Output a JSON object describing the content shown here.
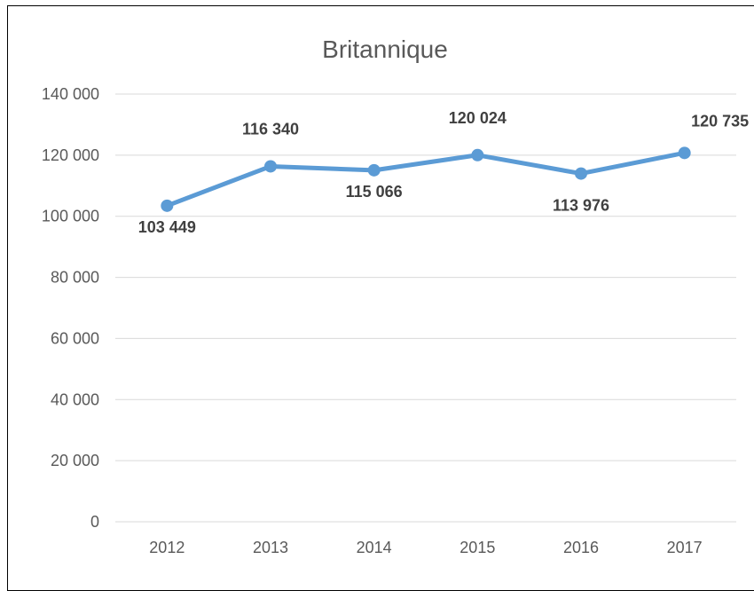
{
  "chart_data": {
    "type": "line",
    "title": "Britannique",
    "categories": [
      "2012",
      "2013",
      "2014",
      "2015",
      "2016",
      "2017"
    ],
    "series": [
      {
        "values": [
          103449,
          116340,
          115066,
          120024,
          113976,
          120735
        ],
        "data_labels": [
          "103 449",
          "116 340",
          "115 066",
          "120 024",
          "113 976",
          "120 735"
        ],
        "color": "#5b9bd5"
      }
    ],
    "ylim": [
      0,
      140000
    ],
    "y_ticks": [
      {
        "value": 0,
        "label": "0"
      },
      {
        "value": 20000,
        "label": "20 000"
      },
      {
        "value": 40000,
        "label": "40 000"
      },
      {
        "value": 60000,
        "label": "60 000"
      },
      {
        "value": 80000,
        "label": "80 000"
      },
      {
        "value": 100000,
        "label": "100 000"
      },
      {
        "value": 120000,
        "label": "120 000"
      },
      {
        "value": 140000,
        "label": "140 000"
      }
    ],
    "grid": true,
    "legend": "none",
    "xlabel": "",
    "ylabel": ""
  }
}
